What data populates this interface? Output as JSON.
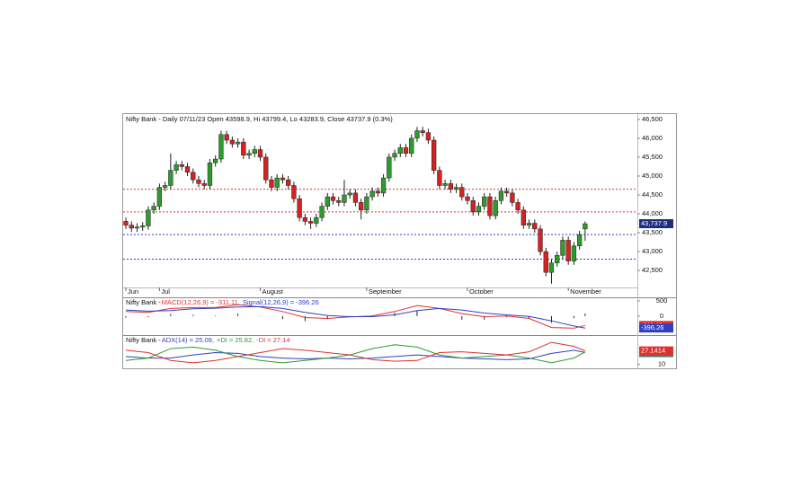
{
  "chart_data": [
    {
      "type": "candlestick",
      "title": "Nifty Bank - Daily 07/11/23 Open 43598.9, Hi 43799.4, Lo 43283.9, Close 43737.9 (0.3%)",
      "categories": [
        "Jun",
        null,
        null,
        null,
        null,
        null,
        "Jul",
        null,
        null,
        null,
        null,
        null,
        null,
        null,
        null,
        null,
        null,
        null,
        null,
        null,
        null,
        null,
        null,
        null,
        "August",
        null,
        null,
        null,
        null,
        null,
        null,
        null,
        null,
        null,
        null,
        null,
        null,
        null,
        null,
        null,
        null,
        null,
        null,
        "September",
        null,
        null,
        null,
        null,
        null,
        null,
        null,
        null,
        null,
        null,
        null,
        null,
        null,
        null,
        null,
        null,
        null,
        "October",
        null,
        null,
        null,
        null,
        null,
        null,
        null,
        null,
        null,
        null,
        null,
        null,
        null,
        null,
        null,
        null,
        null,
        "November",
        null,
        null,
        null
      ],
      "open": [
        43800,
        43700,
        43620,
        43650,
        43680,
        44100,
        44200,
        44700,
        44750,
        45150,
        45300,
        45250,
        45100,
        44900,
        44800,
        44750,
        45350,
        45450,
        46100,
        45950,
        45850,
        45900,
        45550,
        45600,
        45700,
        45500,
        44900,
        44700,
        44950,
        44900,
        44750,
        44400,
        43900,
        43800,
        43750,
        43900,
        44200,
        44450,
        44350,
        44300,
        44500,
        44550,
        44300,
        44100,
        44450,
        44600,
        44550,
        44950,
        45500,
        45600,
        45750,
        45600,
        46000,
        46200,
        46150,
        45950,
        45150,
        44750,
        44800,
        44650,
        44700,
        44450,
        44350,
        44050,
        44200,
        44450,
        43950,
        44350,
        44600,
        44550,
        44300,
        44100,
        43700,
        43750,
        43600,
        43000,
        42450,
        42700,
        42900,
        43300,
        42750,
        43150,
        43598.9
      ],
      "high": [
        43900,
        43800,
        43750,
        43780,
        44200,
        44300,
        44800,
        44850,
        45600,
        45400,
        45400,
        45350,
        45200,
        45000,
        44900,
        45450,
        45550,
        46200,
        46200,
        46050,
        46000,
        46000,
        45700,
        45800,
        45800,
        45600,
        45000,
        45050,
        45050,
        45000,
        44850,
        44500,
        44000,
        43900,
        44000,
        44300,
        44550,
        44550,
        44450,
        44900,
        44650,
        44650,
        44400,
        44550,
        44700,
        44700,
        45050,
        45600,
        45700,
        45850,
        45850,
        46100,
        46300,
        46300,
        46250,
        46050,
        45250,
        44900,
        44900,
        44800,
        44800,
        44550,
        44450,
        44300,
        44550,
        44550,
        44450,
        44700,
        44700,
        44650,
        44400,
        44200,
        43850,
        43850,
        43700,
        43100,
        42800,
        43000,
        43400,
        43400,
        43250,
        43550,
        43799.4
      ],
      "low": [
        43600,
        43520,
        43520,
        43550,
        43580,
        44000,
        44100,
        44600,
        44650,
        45050,
        45150,
        45000,
        44800,
        44700,
        44650,
        44650,
        45250,
        45350,
        45850,
        45750,
        45750,
        45450,
        45450,
        45500,
        45400,
        44800,
        44600,
        44600,
        44800,
        44650,
        44300,
        43800,
        43700,
        43600,
        43650,
        43800,
        44100,
        44250,
        44200,
        44200,
        44400,
        44200,
        43850,
        44000,
        44350,
        44450,
        44450,
        44850,
        45400,
        45500,
        45500,
        45500,
        45900,
        46050,
        45850,
        45050,
        44650,
        44650,
        44550,
        44550,
        44350,
        44250,
        43950,
        43950,
        44100,
        43850,
        43850,
        44250,
        44450,
        44200,
        44000,
        43600,
        43600,
        43500,
        42900,
        42350,
        42150,
        42600,
        42800,
        42650,
        42650,
        43050,
        43283.9
      ],
      "close": [
        43700,
        43620,
        43650,
        43680,
        44100,
        44200,
        44700,
        44750,
        45150,
        45300,
        45250,
        45100,
        44900,
        44800,
        44750,
        45350,
        45450,
        46100,
        45950,
        45850,
        45900,
        45550,
        45600,
        45700,
        45500,
        44900,
        44700,
        44950,
        44900,
        44750,
        44400,
        43900,
        43800,
        43750,
        43900,
        44200,
        44450,
        44350,
        44300,
        44500,
        44550,
        44300,
        44100,
        44450,
        44600,
        44550,
        44950,
        45500,
        45600,
        45750,
        45600,
        46000,
        46200,
        46150,
        45950,
        45150,
        44750,
        44800,
        44650,
        44700,
        44450,
        44350,
        44050,
        44200,
        44450,
        43950,
        44350,
        44600,
        44550,
        44300,
        44100,
        43700,
        43750,
        43600,
        43000,
        42450,
        42700,
        42900,
        43300,
        42750,
        43150,
        43450,
        43737.9
      ],
      "up_color": "#2e9b2e",
      "down_color": "#d42222",
      "levels": [
        {
          "value": 44650,
          "color": "#e03030"
        },
        {
          "value": 44050,
          "color": "#e03030"
        },
        {
          "value": 43450,
          "color": "#3040c0"
        },
        {
          "value": 42800,
          "color": "#3040c0"
        }
      ],
      "last_price": {
        "value": 43737.9,
        "label": "43,737.9"
      },
      "ylim": [
        42050,
        46640
      ],
      "yticks": [
        {
          "value": 46500,
          "label": "46,500"
        },
        {
          "value": 46000,
          "label": "46,000"
        },
        {
          "value": 45500,
          "label": "45,500"
        },
        {
          "value": 45000,
          "label": "45,000"
        },
        {
          "value": 44500,
          "label": "44,500"
        },
        {
          "value": 44000,
          "label": "44,000"
        },
        {
          "value": 43500,
          "label": "43,500"
        },
        {
          "value": 43000,
          "label": "43,000"
        },
        {
          "value": 42500,
          "label": "42,500"
        }
      ]
    },
    {
      "type": "line",
      "title": "Nifty Bank - ",
      "x": [
        0,
        4,
        8,
        12,
        16,
        20,
        24,
        28,
        32,
        36,
        40,
        44,
        48,
        52,
        56,
        60,
        64,
        68,
        72,
        76,
        80,
        82
      ],
      "series": [
        {
          "name": "MACD(12,26,9) = -311.11,",
          "color": "#e03030",
          "values": [
            150,
            120,
            250,
            280,
            280,
            380,
            300,
            150,
            -50,
            -80,
            -30,
            0,
            150,
            350,
            250,
            80,
            -20,
            0,
            -80,
            -380,
            -400,
            -311.11
          ]
        },
        {
          "name": "Signal(12,26,9) = -396.26",
          "color": "#3040c0",
          "values": [
            200,
            160,
            180,
            240,
            260,
            300,
            310,
            250,
            120,
            20,
            -20,
            -20,
            40,
            180,
            250,
            200,
            100,
            40,
            -10,
            -160,
            -330,
            -396.26
          ]
        }
      ],
      "histogram": [
        -50,
        -40,
        70,
        40,
        20,
        80,
        -10,
        -100,
        -170,
        -100,
        -10,
        20,
        110,
        170,
        0,
        -120,
        -120,
        -40,
        -70,
        -220,
        -70,
        85.15
      ],
      "ylim": [
        -600,
        560
      ],
      "yticks": [
        500,
        0
      ]
    },
    {
      "type": "line",
      "title": "Nifty Bank - ",
      "x": [
        0,
        4,
        8,
        12,
        16,
        20,
        24,
        28,
        32,
        36,
        40,
        44,
        48,
        52,
        56,
        60,
        64,
        68,
        72,
        76,
        80,
        82
      ],
      "series": [
        {
          "name": "ADX(14) = 25.09,",
          "color": "#3040c0",
          "values": [
            20,
            18,
            18,
            22,
            25,
            24,
            20,
            18,
            17,
            18,
            17,
            18,
            20,
            22,
            20,
            18,
            17,
            16,
            17,
            24,
            28,
            25.0946
          ]
        },
        {
          "name": "+DI = 25.82,",
          "color": "#2e9b2e",
          "values": [
            15,
            18,
            30,
            32,
            28,
            20,
            15,
            12,
            15,
            18,
            22,
            30,
            35,
            32,
            22,
            18,
            20,
            22,
            18,
            12,
            18,
            25.8215
          ]
        },
        {
          "name": "-DI = 27.14",
          "color": "#e03030",
          "values": [
            28,
            25,
            15,
            12,
            15,
            20,
            25,
            30,
            28,
            25,
            22,
            16,
            14,
            15,
            25,
            26,
            24,
            22,
            26,
            38,
            33,
            27.1414
          ]
        }
      ],
      "ylim": [
        5,
        45
      ],
      "yticks": [
        10
      ]
    }
  ]
}
